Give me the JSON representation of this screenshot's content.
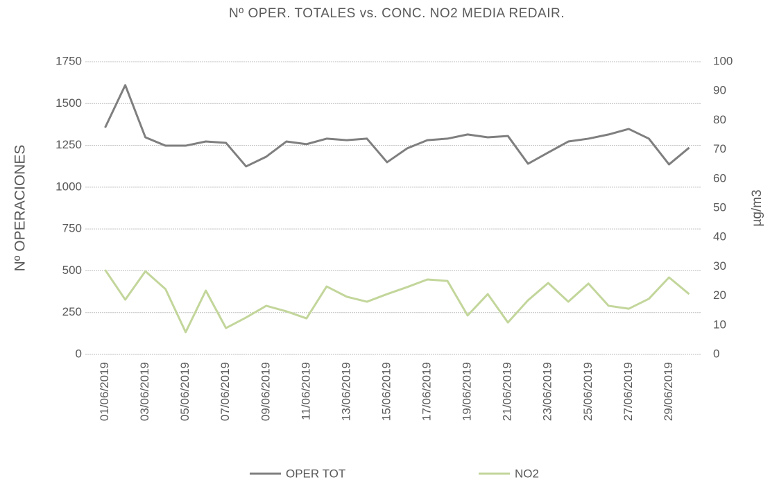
{
  "chart_data": {
    "type": "line",
    "title": "Nº OPER. TOTALES vs. CONC. NO2 MEDIA REDAIR.",
    "y_label": "Nº OPERACIONES",
    "y2_label": "µg/m3",
    "categories": [
      "01/06/2019",
      null,
      "03/06/2019",
      null,
      "05/06/2019",
      null,
      "07/06/2019",
      null,
      "09/06/2019",
      null,
      "11/06/2019",
      null,
      "13/06/2019",
      null,
      "15/06/2019",
      null,
      "17/06/2019",
      null,
      "19/06/2019",
      null,
      "21/06/2019",
      null,
      "23/06/2019",
      null,
      "25/06/2019",
      null,
      "27/06/2019",
      null,
      "29/06/2019",
      null
    ],
    "series": [
      {
        "name": "OPER TOT",
        "color": "#7f7f7f",
        "values": [
          1356,
          1610,
          1298,
          1248,
          1248,
          1273,
          1265,
          1124,
          1182,
          1273,
          1257,
          1290,
          1281,
          1290,
          1149,
          1232,
          1281,
          1290,
          1315,
          1298,
          1306,
          1140,
          1207,
          1273,
          1290,
          1315,
          1348,
          1290,
          1136,
          1236
        ]
      },
      {
        "name": "NO2",
        "color": "#c3d69b",
        "axis": "y2",
        "values": [
          28.9,
          18.7,
          28.4,
          22.3,
          7.6,
          21.8,
          9.0,
          12.6,
          16.6,
          14.7,
          12.3,
          23.2,
          19.7,
          18.0,
          20.6,
          23.0,
          25.6,
          25.1,
          13.3,
          20.6,
          10.9,
          18.5,
          24.4,
          18.0,
          24.2,
          16.6,
          15.6,
          19.0,
          26.3,
          20.6
        ]
      }
    ],
    "ylim": [
      0,
      1750
    ],
    "yticks": [
      0,
      250,
      500,
      750,
      1000,
      1250,
      1500,
      1750
    ],
    "y2lim": [
      0,
      100
    ],
    "y2ticks": [
      0,
      10,
      20,
      30,
      40,
      50,
      60,
      70,
      80,
      90,
      100
    ],
    "grid": true,
    "legend": "bottom"
  }
}
